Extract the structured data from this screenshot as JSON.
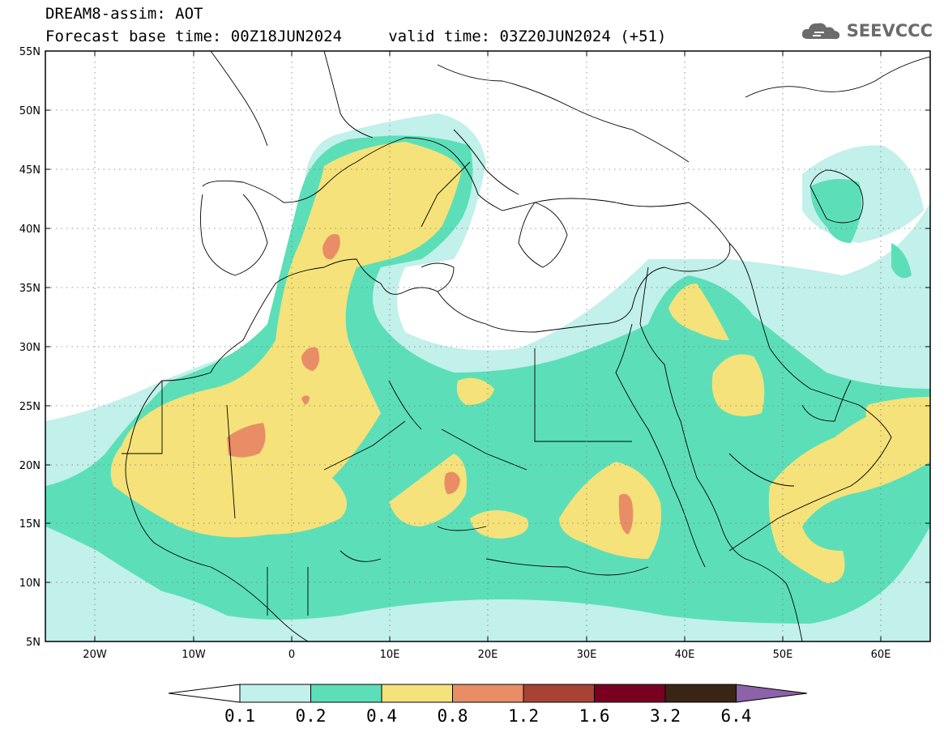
{
  "header": {
    "title_line1": "DREAM8-assim: AOT",
    "title_line2": "Forecast base time: 00Z18JUN2024     valid time: 03Z20JUN2024 (+51)",
    "brand": "SEEVCCC",
    "brand_icon": "cloud-logo-icon"
  },
  "map": {
    "lon_ticks": [
      "20W",
      "10W",
      "0",
      "10E",
      "20E",
      "30E",
      "40E",
      "50E",
      "60E"
    ],
    "lat_ticks": [
      "55N",
      "50N",
      "45N",
      "40N",
      "35N",
      "30N",
      "25N",
      "20N",
      "15N",
      "10N",
      "5N"
    ],
    "lon_range": [
      -25,
      65
    ],
    "lat_range": [
      5,
      55
    ],
    "grid": "dotted"
  },
  "colorbar": {
    "labels": [
      "0.1",
      "0.2",
      "0.4",
      "0.8",
      "1.2",
      "1.6",
      "3.2",
      "6.4"
    ],
    "colors": [
      "#c2f0ea",
      "#5cdfb8",
      "#f5e27a",
      "#e98d66",
      "#a84234",
      "#7a0022",
      "#3a2515",
      "#8c62a8"
    ],
    "under_color": "#ffffff"
  }
}
